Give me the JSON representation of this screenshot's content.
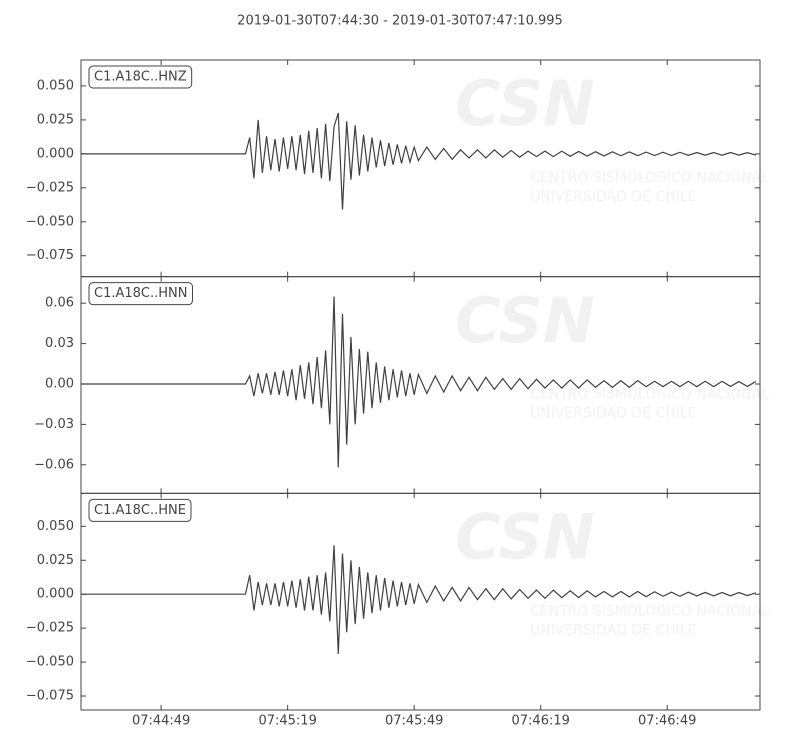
{
  "title": "2019-01-30T07:44:30  -  2019-01-30T07:47:10.995",
  "watermark": [
    "CSN",
    "CENTRO SISMOLOGICO NACIONAL",
    "UNIVERSIDAD DE CHILE"
  ],
  "chart_data": [
    {
      "type": "line",
      "x": [
        0,
        39,
        40,
        41,
        42,
        43,
        44,
        45,
        46,
        47,
        48,
        49,
        50,
        51,
        52,
        53,
        54,
        55,
        56,
        57,
        58,
        59,
        60,
        61,
        62,
        63,
        64,
        65,
        66,
        67,
        68,
        69,
        70,
        71,
        72,
        73,
        74,
        75,
        76,
        77,
        78,
        79,
        80,
        82,
        84,
        86,
        88,
        90,
        92,
        94,
        96,
        98,
        100,
        102,
        104,
        106,
        108,
        110,
        112,
        114,
        116,
        118,
        120,
        122,
        124,
        126,
        128,
        130,
        132,
        134,
        136,
        138,
        140,
        142,
        144,
        146,
        148,
        150,
        152,
        154,
        156,
        158,
        160
      ],
      "series": [
        {
          "name": "C1.A18C..HNZ",
          "color": "#404040",
          "values": [
            0,
            0,
            0.012,
            -0.018,
            0.025,
            -0.014,
            0.013,
            -0.012,
            0.011,
            -0.013,
            0.012,
            -0.011,
            0.013,
            -0.012,
            0.014,
            -0.015,
            0.017,
            -0.014,
            0.019,
            -0.018,
            0.022,
            -0.02,
            0.02,
            0.03,
            -0.041,
            0.024,
            -0.019,
            0.021,
            -0.016,
            0.014,
            -0.013,
            0.012,
            -0.01,
            0.01,
            -0.009,
            0.008,
            -0.008,
            0.007,
            -0.007,
            0.006,
            -0.006,
            0.005,
            -0.005,
            0.005,
            -0.004,
            0.004,
            -0.004,
            0.003,
            -0.003,
            0.003,
            -0.003,
            0.003,
            -0.0025,
            0.0025,
            -0.0025,
            0.002,
            -0.002,
            0.002,
            -0.002,
            0.002,
            -0.0018,
            0.0018,
            -0.0016,
            0.0016,
            -0.0015,
            0.0015,
            -0.0014,
            0.0014,
            -0.0013,
            0.0013,
            -0.0012,
            0.0012,
            -0.0012,
            0.0011,
            -0.0011,
            0.001,
            -0.001,
            0.001,
            -0.001,
            0.001,
            -0.0009,
            0.0009,
            -0.0009
          ]
        }
      ],
      "xlim": [
        0,
        160.995
      ],
      "ylim": [
        -0.0904,
        0.0691
      ],
      "yticks": [
        {
          "value": 0.05,
          "label": "0.050"
        },
        {
          "value": 0.025,
          "label": "0.025"
        },
        {
          "value": 0,
          "label": "0.000"
        },
        {
          "value": -0.025,
          "label": "−0.025"
        },
        {
          "value": -0.05,
          "label": "−0.050"
        },
        {
          "value": -0.075,
          "label": "−0.075"
        }
      ]
    },
    {
      "type": "line",
      "x": [
        0,
        39,
        40,
        41,
        42,
        43,
        44,
        45,
        46,
        47,
        48,
        49,
        50,
        51,
        52,
        53,
        54,
        55,
        56,
        57,
        58,
        59,
        60,
        61,
        62,
        63,
        64,
        65,
        66,
        67,
        68,
        69,
        70,
        71,
        72,
        73,
        74,
        75,
        76,
        77,
        78,
        79,
        80,
        82,
        84,
        86,
        88,
        90,
        92,
        94,
        96,
        98,
        100,
        102,
        104,
        106,
        108,
        110,
        112,
        114,
        116,
        118,
        120,
        122,
        124,
        126,
        128,
        130,
        132,
        134,
        136,
        138,
        140,
        142,
        144,
        146,
        148,
        150,
        152,
        154,
        156,
        158,
        160
      ],
      "series": [
        {
          "name": "C1.A18C..HNN",
          "color": "#404040",
          "values": [
            0,
            0,
            0.006,
            -0.009,
            0.008,
            -0.007,
            0.008,
            -0.008,
            0.009,
            -0.008,
            0.01,
            -0.009,
            0.011,
            -0.012,
            0.014,
            -0.011,
            0.016,
            -0.015,
            0.02,
            -0.018,
            0.025,
            -0.03,
            0.065,
            -0.062,
            0.052,
            -0.045,
            0.035,
            -0.03,
            0.026,
            -0.022,
            0.024,
            -0.018,
            0.016,
            -0.014,
            0.013,
            -0.012,
            0.011,
            -0.01,
            0.01,
            -0.009,
            0.008,
            -0.008,
            0.007,
            -0.007,
            0.006,
            -0.006,
            0.006,
            -0.005,
            0.005,
            -0.005,
            0.005,
            -0.004,
            0.004,
            -0.004,
            0.004,
            -0.0035,
            0.0035,
            -0.003,
            0.003,
            -0.003,
            0.003,
            -0.003,
            0.003,
            -0.0025,
            0.0025,
            -0.0025,
            0.0025,
            -0.0025,
            0.0025,
            -0.002,
            0.002,
            -0.002,
            0.002,
            -0.002,
            0.002,
            -0.002,
            0.002,
            -0.002,
            0.002,
            -0.0018,
            0.0018,
            -0.0018,
            0.0018
          ]
        }
      ],
      "xlim": [
        0,
        160.995
      ],
      "ylim": [
        -0.0812,
        0.0797
      ],
      "yticks": [
        0.06,
        0.03,
        {
          "value": 0,
          "label": "0.00"
        },
        {
          "value": -0.03,
          "label": "−0.03"
        },
        {
          "value": -0.06,
          "label": "−0.06"
        }
      ]
    },
    {
      "type": "line",
      "x": [
        0,
        39,
        40,
        41,
        42,
        43,
        44,
        45,
        46,
        47,
        48,
        49,
        50,
        51,
        52,
        53,
        54,
        55,
        56,
        57,
        58,
        59,
        60,
        61,
        62,
        63,
        64,
        65,
        66,
        67,
        68,
        69,
        70,
        71,
        72,
        73,
        74,
        75,
        76,
        77,
        78,
        79,
        80,
        82,
        84,
        86,
        88,
        90,
        92,
        94,
        96,
        98,
        100,
        102,
        104,
        106,
        108,
        110,
        112,
        114,
        116,
        118,
        120,
        122,
        124,
        126,
        128,
        130,
        132,
        134,
        136,
        138,
        140,
        142,
        144,
        146,
        148,
        150,
        152,
        154,
        156,
        158,
        160
      ],
      "series": [
        {
          "name": "C1.A18C..HNE",
          "color": "#404040",
          "values": [
            0,
            0,
            0.014,
            -0.012,
            0.009,
            -0.008,
            0.008,
            -0.008,
            0.008,
            -0.009,
            0.009,
            -0.009,
            0.01,
            -0.01,
            0.011,
            -0.012,
            0.013,
            -0.012,
            0.014,
            -0.015,
            0.016,
            -0.02,
            0.036,
            -0.044,
            0.03,
            -0.028,
            0.025,
            -0.022,
            0.02,
            -0.018,
            0.016,
            -0.014,
            0.014,
            -0.012,
            0.012,
            -0.01,
            0.01,
            -0.009,
            0.009,
            -0.008,
            0.008,
            -0.007,
            0.007,
            -0.006,
            0.006,
            -0.005,
            0.005,
            -0.005,
            0.005,
            -0.004,
            0.004,
            -0.004,
            0.004,
            -0.0035,
            0.0035,
            -0.003,
            0.003,
            -0.003,
            0.003,
            -0.0025,
            0.0025,
            -0.0025,
            0.0025,
            -0.002,
            0.002,
            -0.002,
            0.002,
            -0.002,
            0.002,
            -0.0018,
            0.0018,
            -0.0015,
            0.0015,
            -0.0015,
            0.0015,
            -0.0013,
            0.0013,
            -0.0012,
            0.0012,
            -0.0012,
            0.0012,
            -0.001,
            0.001
          ]
        }
      ],
      "xlim": [
        0,
        160.995
      ],
      "ylim": [
        -0.0853,
        0.0743
      ],
      "yticks": [
        {
          "value": 0.05,
          "label": "0.050"
        },
        {
          "value": 0.025,
          "label": "0.025"
        },
        {
          "value": 0,
          "label": "0.000"
        },
        {
          "value": -0.025,
          "label": "−0.025"
        },
        {
          "value": -0.05,
          "label": "−0.050"
        },
        {
          "value": -0.075,
          "label": "−0.075"
        }
      ],
      "xticks": [
        {
          "value": 19,
          "label": "07:44:49"
        },
        {
          "value": 49,
          "label": "07:45:19"
        },
        {
          "value": 79,
          "label": "07:45:49"
        },
        {
          "value": 109,
          "label": "07:46:19"
        },
        {
          "value": 139,
          "label": "07:46:49"
        }
      ]
    }
  ]
}
